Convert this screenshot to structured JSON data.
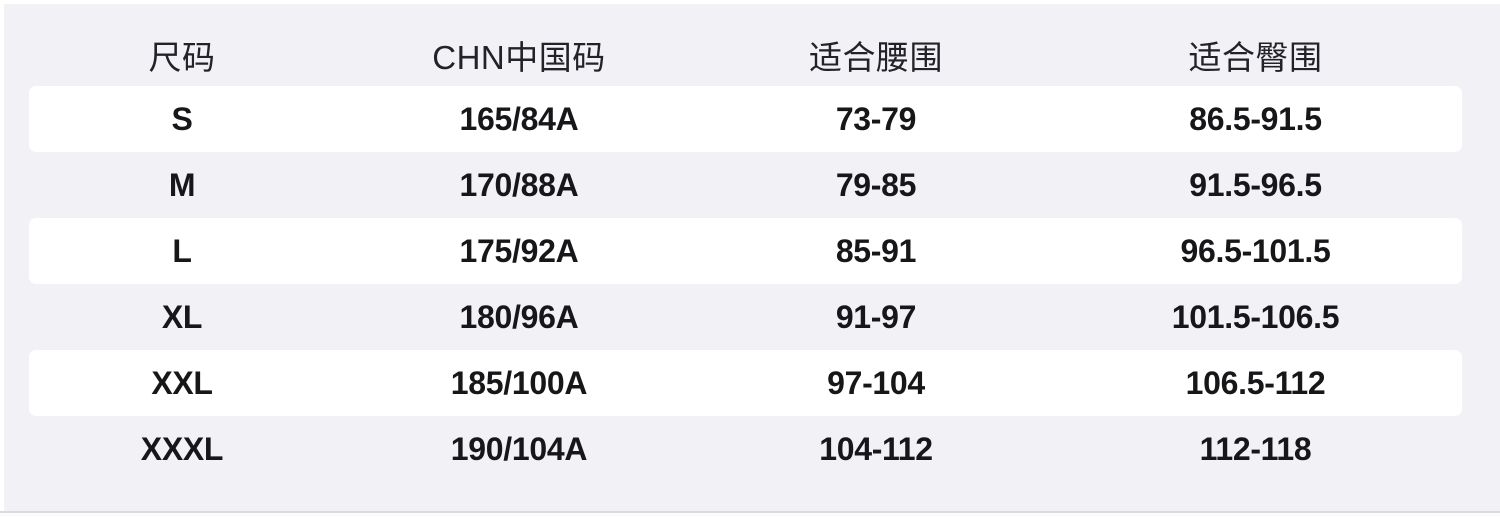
{
  "size_chart": {
    "columns": [
      {
        "key": "size",
        "label": "尺码"
      },
      {
        "key": "chn",
        "label": "CHN中国码"
      },
      {
        "key": "waist",
        "label": "适合腰围"
      },
      {
        "key": "hip",
        "label": "适合臀围"
      }
    ],
    "rows": [
      {
        "size": "S",
        "chn": "165/84A",
        "waist": "73-79",
        "hip": "86.5-91.5"
      },
      {
        "size": "M",
        "chn": "170/88A",
        "waist": "79-85",
        "hip": "91.5-96.5"
      },
      {
        "size": "L",
        "chn": "175/92A",
        "waist": "85-91",
        "hip": "96.5-101.5"
      },
      {
        "size": "XL",
        "chn": "180/96A",
        "waist": "91-97",
        "hip": "101.5-106.5"
      },
      {
        "size": "XXL",
        "chn": "185/100A",
        "waist": "97-104",
        "hip": "106.5-112"
      },
      {
        "size": "XXXL",
        "chn": "190/104A",
        "waist": "104-112",
        "hip": "112-118"
      }
    ],
    "colors": {
      "panel_background": "#f1f1f6",
      "row_highlight": "#ffffff",
      "header_text": "#222228",
      "cell_text": "#17171a",
      "bottom_divider": "#d9d9de"
    }
  }
}
